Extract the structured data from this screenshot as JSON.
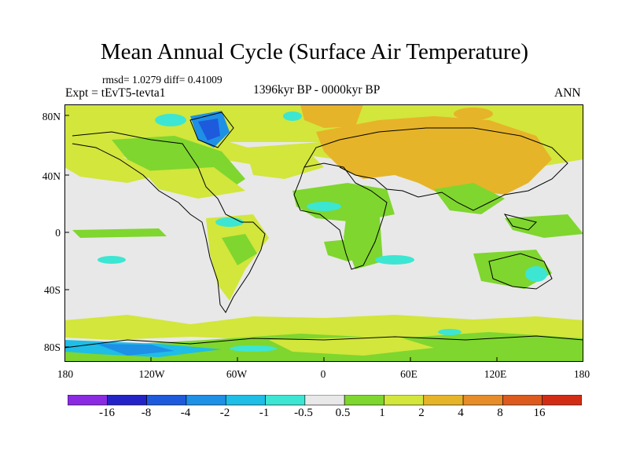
{
  "title": "Mean Annual Cycle (Surface Air Temperature)",
  "stats": "rmsd= 1.0279  diff= 0.41009",
  "expt": "Expt = tEvT5-tevta1",
  "period": "1396kyr BP - 0000kyr BP",
  "season": "ANN",
  "lat_labels": [
    "80N",
    "40N",
    "0",
    "40S",
    "80S"
  ],
  "lon_labels": [
    "180",
    "120W",
    "60W",
    "0",
    "60E",
    "120E",
    "180"
  ],
  "colorbar": {
    "levels": [
      "-16",
      "-8",
      "-4",
      "-2",
      "-1",
      "-0.5",
      "0.5",
      "1",
      "2",
      "4",
      "8",
      "16"
    ],
    "colors": [
      "#8a2be2",
      "#2323c8",
      "#1e5adc",
      "#1e90e6",
      "#1ebee6",
      "#3ce6d2",
      "#e8e8e8",
      "#7fd62e",
      "#d2e63c",
      "#e6b428",
      "#e68c28",
      "#dc5a1e",
      "#d22d14"
    ]
  },
  "colors": {
    "neutral": "#e8e8e8",
    "warm1": "#7fd62e",
    "warm2": "#d2e63c",
    "warm3": "#e6b428",
    "cool1": "#3ce6d2",
    "cool2": "#1ebee6",
    "cool3": "#1e90e6",
    "cool4": "#1e5adc"
  }
}
